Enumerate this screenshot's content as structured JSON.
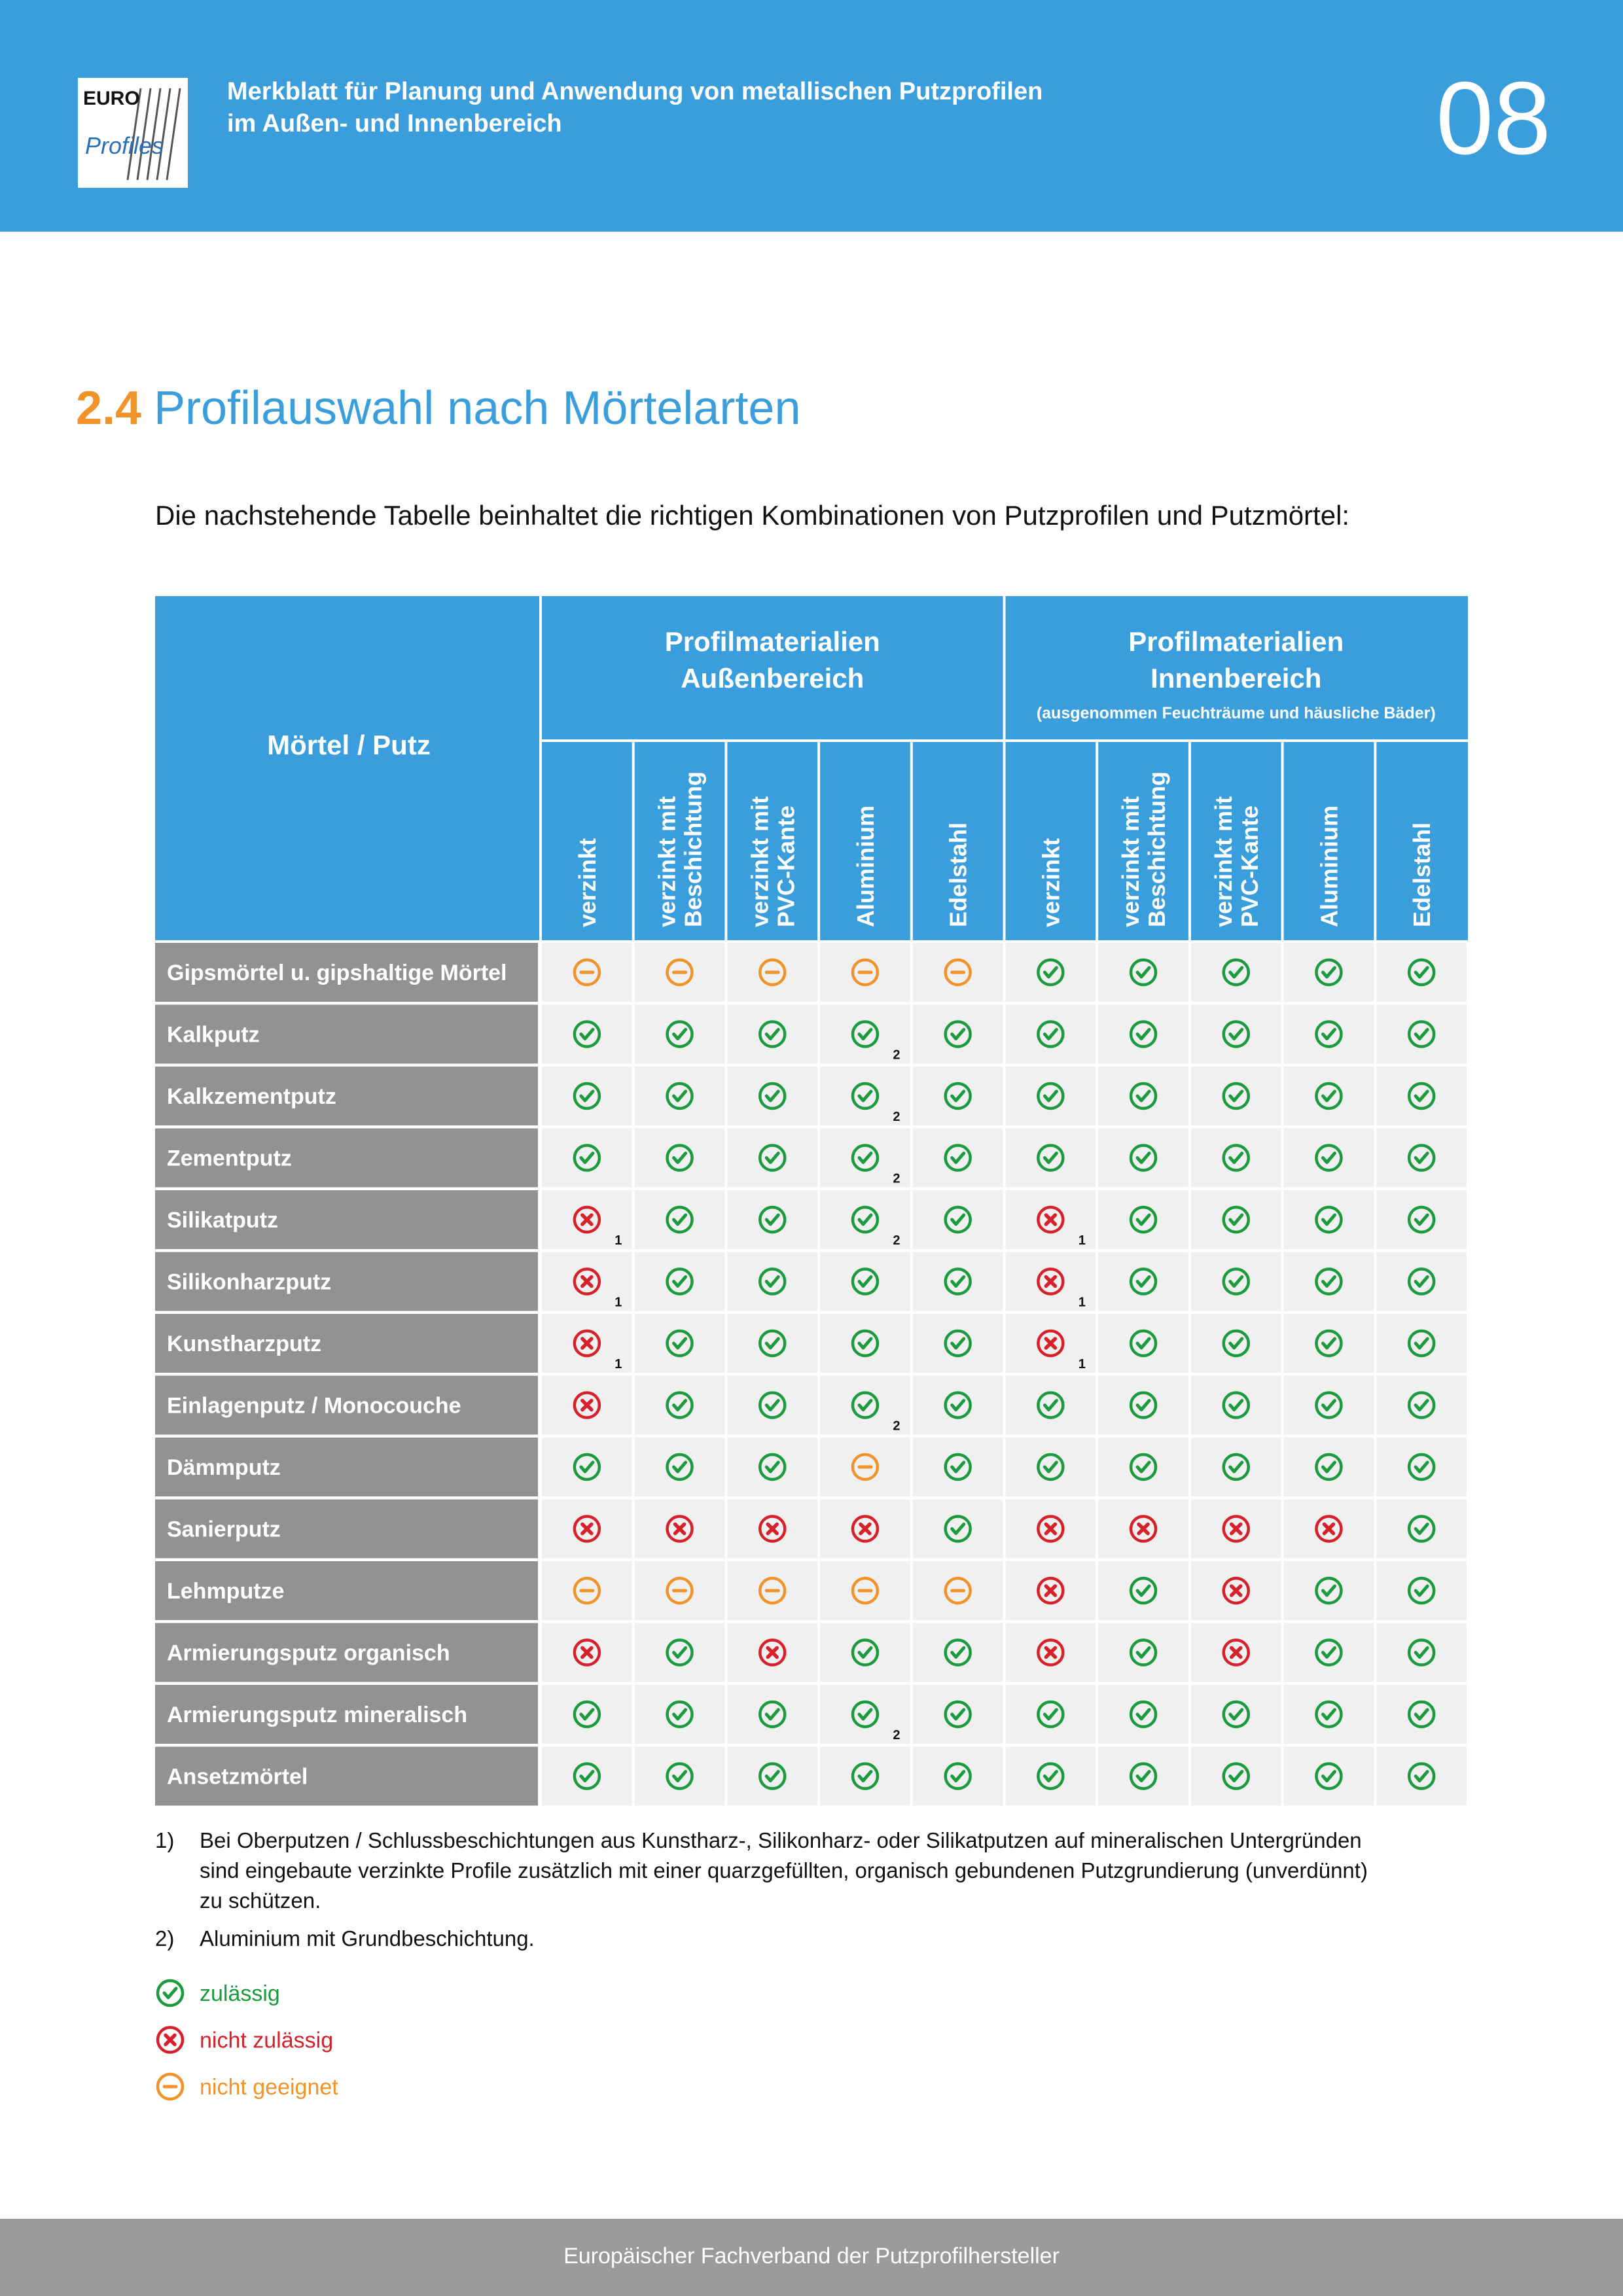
{
  "header": {
    "logo": {
      "top": "EURO",
      "bottom": "Profiles"
    },
    "title_lines": [
      "Merkblatt für Planung und Anwendung von metallischen Putzprofilen",
      "im Außen- und Innenbereich"
    ],
    "page_number": "08"
  },
  "section": {
    "number": "2.4",
    "title": "Profilauswahl nach Mörtelarten"
  },
  "intro": "Die nachstehende Tabelle beinhaltet die richtigen Kombinationen von Putzprofilen und Putzmörtel:",
  "table": {
    "corner": "Mörtel / Putz",
    "groups": [
      {
        "lines": [
          "Profilmaterialien",
          "Außenbereich"
        ]
      },
      {
        "lines": [
          "Profilmaterialien",
          "Innenbereich"
        ],
        "note": "(ausgenommen Feuchträume und häusliche Bäder)"
      }
    ],
    "columns": [
      [
        "verzinkt"
      ],
      [
        "verzinkt mit",
        "Beschichtung"
      ],
      [
        "verzinkt mit",
        "PVC-Kante"
      ],
      [
        "Aluminium"
      ],
      [
        "Edelstahl"
      ],
      [
        "verzinkt"
      ],
      [
        "verzinkt mit",
        "Beschichtung"
      ],
      [
        "verzinkt mit",
        "PVC-Kante"
      ],
      [
        "Aluminium"
      ],
      [
        "Edelstahl"
      ]
    ],
    "rows": [
      {
        "name": "Gipsmörtel u. gipshaltige Mörtel",
        "cells": [
          "nicht geeignet",
          "nicht geeignet",
          "nicht geeignet",
          "nicht geeignet",
          "nicht geeignet",
          "zulässig",
          "zulässig",
          "zulässig",
          "zulässig",
          "zulässig"
        ]
      },
      {
        "name": "Kalkputz",
        "cells": [
          "zulässig",
          "zulässig",
          "zulässig",
          {
            "status": "zulässig",
            "note": "2"
          },
          "zulässig",
          "zulässig",
          "zulässig",
          "zulässig",
          "zulässig",
          "zulässig"
        ]
      },
      {
        "name": "Kalkzementputz",
        "cells": [
          "zulässig",
          "zulässig",
          "zulässig",
          {
            "status": "zulässig",
            "note": "2"
          },
          "zulässig",
          "zulässig",
          "zulässig",
          "zulässig",
          "zulässig",
          "zulässig"
        ]
      },
      {
        "name": "Zementputz",
        "cells": [
          "zulässig",
          "zulässig",
          "zulässig",
          {
            "status": "zulässig",
            "note": "2"
          },
          "zulässig",
          "zulässig",
          "zulässig",
          "zulässig",
          "zulässig",
          "zulässig"
        ]
      },
      {
        "name": "Silikatputz",
        "cells": [
          {
            "status": "nicht zulässig",
            "note": "1"
          },
          "zulässig",
          "zulässig",
          {
            "status": "zulässig",
            "note": "2"
          },
          "zulässig",
          {
            "status": "nicht zulässig",
            "note": "1"
          },
          "zulässig",
          "zulässig",
          "zulässig",
          "zulässig"
        ]
      },
      {
        "name": "Silikonharzputz",
        "cells": [
          {
            "status": "nicht zulässig",
            "note": "1"
          },
          "zulässig",
          "zulässig",
          "zulässig",
          "zulässig",
          {
            "status": "nicht zulässig",
            "note": "1"
          },
          "zulässig",
          "zulässig",
          "zulässig",
          "zulässig"
        ]
      },
      {
        "name": "Kunstharzputz",
        "cells": [
          {
            "status": "nicht zulässig",
            "note": "1"
          },
          "zulässig",
          "zulässig",
          "zulässig",
          "zulässig",
          {
            "status": "nicht zulässig",
            "note": "1"
          },
          "zulässig",
          "zulässig",
          "zulässig",
          "zulässig"
        ]
      },
      {
        "name": "Einlagenputz / Monocouche",
        "cells": [
          "nicht zulässig",
          "zulässig",
          "zulässig",
          {
            "status": "zulässig",
            "note": "2"
          },
          "zulässig",
          "zulässig",
          "zulässig",
          "zulässig",
          "zulässig",
          "zulässig"
        ]
      },
      {
        "name": "Dämmputz",
        "cells": [
          "zulässig",
          "zulässig",
          "zulässig",
          "nicht geeignet",
          "zulässig",
          "zulässig",
          "zulässig",
          "zulässig",
          "zulässig",
          "zulässig"
        ]
      },
      {
        "name": "Sanierputz",
        "cells": [
          "nicht zulässig",
          "nicht zulässig",
          "nicht zulässig",
          "nicht zulässig",
          "zulässig",
          "nicht zulässig",
          "nicht zulässig",
          "nicht zulässig",
          "nicht zulässig",
          "zulässig"
        ]
      },
      {
        "name": "Lehmputze",
        "cells": [
          "nicht geeignet",
          "nicht geeignet",
          "nicht geeignet",
          "nicht geeignet",
          "nicht geeignet",
          "nicht zulässig",
          "zulässig",
          "nicht zulässig",
          "zulässig",
          "zulässig"
        ]
      },
      {
        "name": "Armierungsputz organisch",
        "cells": [
          "nicht zulässig",
          "zulässig",
          "nicht zulässig",
          "zulässig",
          "zulässig",
          "nicht zulässig",
          "zulässig",
          "nicht zulässig",
          "zulässig",
          "zulässig"
        ]
      },
      {
        "name": "Armierungsputz mineralisch",
        "cells": [
          "zulässig",
          "zulässig",
          "zulässig",
          {
            "status": "zulässig",
            "note": "2"
          },
          "zulässig",
          "zulässig",
          "zulässig",
          "zulässig",
          "zulässig",
          "zulässig"
        ]
      },
      {
        "name": "Ansetzmörtel",
        "cells": [
          "zulässig",
          "zulässig",
          "zulässig",
          "zulässig",
          "zulässig",
          "zulässig",
          "zulässig",
          "zulässig",
          "zulässig",
          "zulässig"
        ]
      }
    ]
  },
  "footnotes": [
    {
      "marker": "1)",
      "lines": [
        "Bei Oberputzen / Schlussbeschichtungen aus Kunstharz-, Silikonharz- oder Silikatputzen auf mineralischen Untergründen",
        "sind eingebaute verzinkte Profile zusätzlich mit einer quarzgefüllten, organisch gebundenen Putzgrundierung (unverdünnt)",
        "zu schützen."
      ]
    },
    {
      "marker": "2)",
      "lines": [
        "Aluminium mit Grundbeschichtung."
      ]
    }
  ],
  "legend": [
    "zulässig",
    "nicht zulässig",
    "nicht geeignet"
  ],
  "footer": "Europäischer Fachverband der Putzprofilhersteller"
}
